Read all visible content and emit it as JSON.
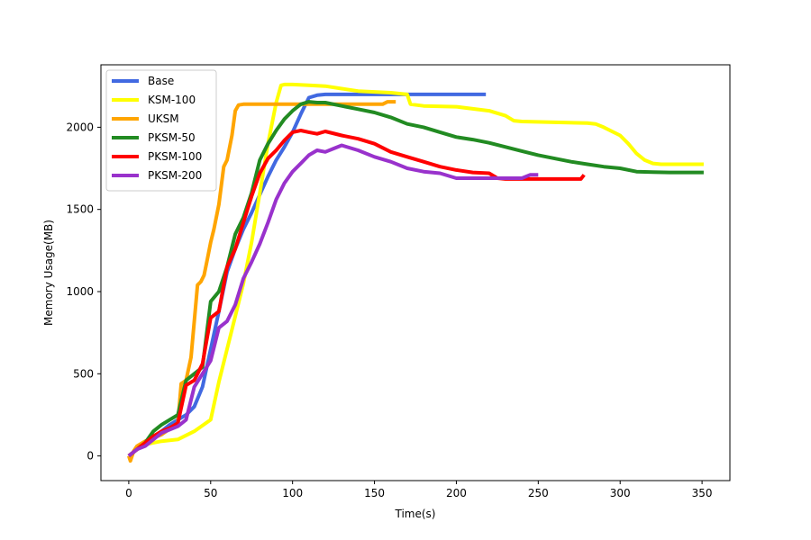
{
  "chart_data": {
    "type": "line",
    "title": "",
    "xlabel": "Time(s)",
    "ylabel": "Memory Usage(MB)",
    "xlim": [
      -17,
      367
    ],
    "ylim": [
      -150,
      2380
    ],
    "xticks": [
      0,
      50,
      100,
      150,
      200,
      250,
      300,
      350
    ],
    "yticks": [
      0,
      500,
      1000,
      1500,
      2000
    ],
    "legend_position": "top-left",
    "grid": false,
    "series": [
      {
        "name": "Base",
        "color": "#4169e1",
        "x": [
          0,
          5,
          10,
          15,
          20,
          25,
          30,
          35,
          40,
          45,
          50,
          55,
          60,
          65,
          70,
          75,
          80,
          85,
          90,
          95,
          100,
          105,
          110,
          115,
          120,
          130,
          140,
          160,
          180,
          200,
          218
        ],
        "y": [
          0,
          40,
          70,
          110,
          150,
          190,
          220,
          250,
          300,
          420,
          650,
          880,
          1120,
          1260,
          1380,
          1480,
          1590,
          1700,
          1800,
          1880,
          1970,
          2080,
          2180,
          2195,
          2200,
          2200,
          2200,
          2200,
          2200,
          2200,
          2200
        ]
      },
      {
        "name": "KSM-100",
        "color": "#ffff00",
        "x": [
          0,
          5,
          10,
          20,
          30,
          40,
          50,
          55,
          60,
          65,
          70,
          75,
          80,
          85,
          90,
          93,
          95,
          100,
          110,
          120,
          130,
          140,
          150,
          160,
          170,
          172,
          180,
          200,
          220,
          230,
          235,
          240,
          260,
          280,
          285,
          290,
          300,
          305,
          310,
          315,
          320,
          325,
          330,
          340,
          351
        ],
        "y": [
          0,
          40,
          70,
          90,
          100,
          150,
          220,
          450,
          650,
          850,
          1050,
          1300,
          1600,
          1900,
          2150,
          2255,
          2260,
          2260,
          2255,
          2250,
          2235,
          2220,
          2215,
          2210,
          2200,
          2140,
          2130,
          2125,
          2100,
          2070,
          2040,
          2035,
          2030,
          2025,
          2020,
          2000,
          1950,
          1900,
          1840,
          1800,
          1780,
          1775,
          1775,
          1775,
          1775
        ]
      },
      {
        "name": "UKSM",
        "color": "#ffa500",
        "x": [
          0,
          1,
          3,
          5,
          10,
          20,
          30,
          32,
          35,
          38,
          40,
          42,
          44,
          46,
          48,
          50,
          52,
          55,
          58,
          60,
          63,
          65,
          67,
          70,
          80,
          100,
          120,
          140,
          155,
          158,
          160,
          163
        ],
        "y": [
          0,
          -30,
          30,
          60,
          90,
          130,
          200,
          440,
          460,
          600,
          820,
          1040,
          1060,
          1100,
          1200,
          1300,
          1380,
          1530,
          1760,
          1800,
          1950,
          2100,
          2135,
          2140,
          2140,
          2140,
          2140,
          2140,
          2140,
          2155,
          2155,
          2155
        ]
      },
      {
        "name": "PKSM-50",
        "color": "#228b22",
        "x": [
          0,
          5,
          10,
          15,
          20,
          25,
          30,
          35,
          40,
          45,
          50,
          55,
          60,
          65,
          70,
          75,
          80,
          85,
          90,
          95,
          100,
          105,
          110,
          115,
          120,
          130,
          140,
          150,
          160,
          170,
          180,
          190,
          200,
          210,
          220,
          230,
          240,
          250,
          260,
          270,
          280,
          290,
          300,
          310,
          320,
          330,
          340,
          351
        ],
        "y": [
          0,
          40,
          80,
          150,
          190,
          220,
          250,
          460,
          500,
          540,
          940,
          1000,
          1150,
          1350,
          1450,
          1600,
          1800,
          1900,
          1980,
          2050,
          2100,
          2140,
          2155,
          2150,
          2150,
          2130,
          2110,
          2090,
          2060,
          2020,
          2000,
          1970,
          1940,
          1925,
          1905,
          1880,
          1855,
          1830,
          1810,
          1790,
          1775,
          1760,
          1750,
          1730,
          1727,
          1725,
          1725,
          1725
        ]
      },
      {
        "name": "PKSM-100",
        "color": "#ff0000",
        "x": [
          0,
          5,
          10,
          15,
          20,
          25,
          30,
          35,
          40,
          45,
          50,
          55,
          60,
          65,
          70,
          75,
          80,
          85,
          90,
          95,
          100,
          105,
          110,
          115,
          120,
          130,
          140,
          150,
          160,
          170,
          180,
          190,
          200,
          210,
          220,
          225,
          230,
          240,
          250,
          260,
          270,
          276,
          278
        ],
        "y": [
          0,
          40,
          80,
          120,
          150,
          170,
          200,
          430,
          460,
          560,
          840,
          880,
          1150,
          1260,
          1420,
          1580,
          1720,
          1810,
          1860,
          1920,
          1970,
          1980,
          1970,
          1960,
          1975,
          1950,
          1930,
          1900,
          1850,
          1820,
          1790,
          1760,
          1740,
          1725,
          1720,
          1690,
          1685,
          1685,
          1685,
          1685,
          1685,
          1685,
          1710
        ]
      },
      {
        "name": "PKSM-200",
        "color": "#9932cc",
        "x": [
          0,
          5,
          10,
          15,
          20,
          25,
          30,
          35,
          40,
          45,
          50,
          55,
          60,
          65,
          70,
          75,
          80,
          85,
          90,
          95,
          100,
          105,
          110,
          115,
          120,
          125,
          130,
          140,
          150,
          160,
          170,
          180,
          190,
          200,
          210,
          220,
          230,
          240,
          245,
          250
        ],
        "y": [
          0,
          40,
          60,
          100,
          140,
          160,
          180,
          220,
          420,
          500,
          580,
          780,
          820,
          920,
          1080,
          1180,
          1290,
          1420,
          1560,
          1660,
          1730,
          1780,
          1830,
          1860,
          1850,
          1870,
          1890,
          1860,
          1820,
          1790,
          1750,
          1730,
          1720,
          1690,
          1690,
          1690,
          1690,
          1690,
          1710,
          1710
        ]
      }
    ]
  }
}
